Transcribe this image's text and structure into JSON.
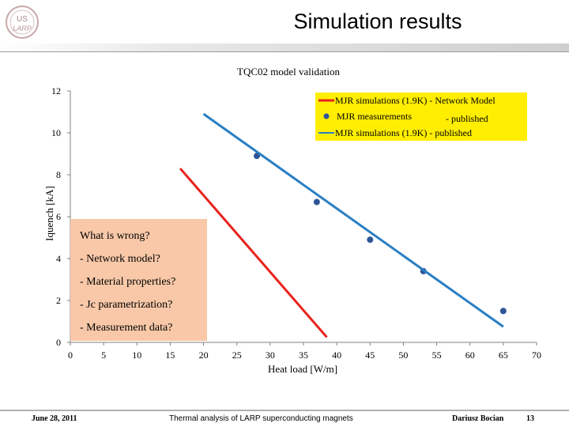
{
  "slide": {
    "title": "Simulation results",
    "logo_text_top": "US",
    "logo_text_bottom": "LARP"
  },
  "chart_data": {
    "type": "line",
    "title": "TQC02 model validation",
    "xlabel": "Heat load [W/m]",
    "ylabel": "Iquench [kA]",
    "xlim": [
      0,
      70
    ],
    "ylim": [
      0,
      12
    ],
    "xticks": [
      0,
      5,
      10,
      15,
      20,
      25,
      30,
      35,
      40,
      45,
      50,
      55,
      60,
      65,
      70
    ],
    "yticks": [
      0,
      2,
      4,
      6,
      8,
      10,
      12
    ],
    "grid": false,
    "legend_placement": "top-right",
    "series": [
      {
        "name": "MJR simulations (1.9K) - Network Model",
        "style": "line",
        "color": "#e8221c",
        "x": [
          16.5,
          38.5
        ],
        "y": [
          8.3,
          0.25
        ]
      },
      {
        "name": "MJR measurements - published",
        "style": "marker",
        "color": "#2e5597",
        "x": [
          28,
          37,
          45,
          53,
          65
        ],
        "y": [
          8.9,
          6.7,
          4.9,
          3.4,
          1.5
        ]
      },
      {
        "name": "MJR simulations (1.9K) - published",
        "style": "line",
        "color": "#2a7fc4",
        "x": [
          20,
          65
        ],
        "y": [
          10.9,
          0.75
        ]
      }
    ],
    "annotation": {
      "heading": "What is wrong?",
      "items": [
        "- Network model?",
        "- Material properties?",
        "- Jc parametrization?",
        "- Measurement data?"
      ],
      "color": "#f8c8a8"
    },
    "legend_box_color": "#ffee00"
  },
  "footer": {
    "date": "June 28, 2011",
    "center": "Thermal analysis of LARP superconducting magnets",
    "author": "Dariusz Bocian",
    "page": "13"
  }
}
